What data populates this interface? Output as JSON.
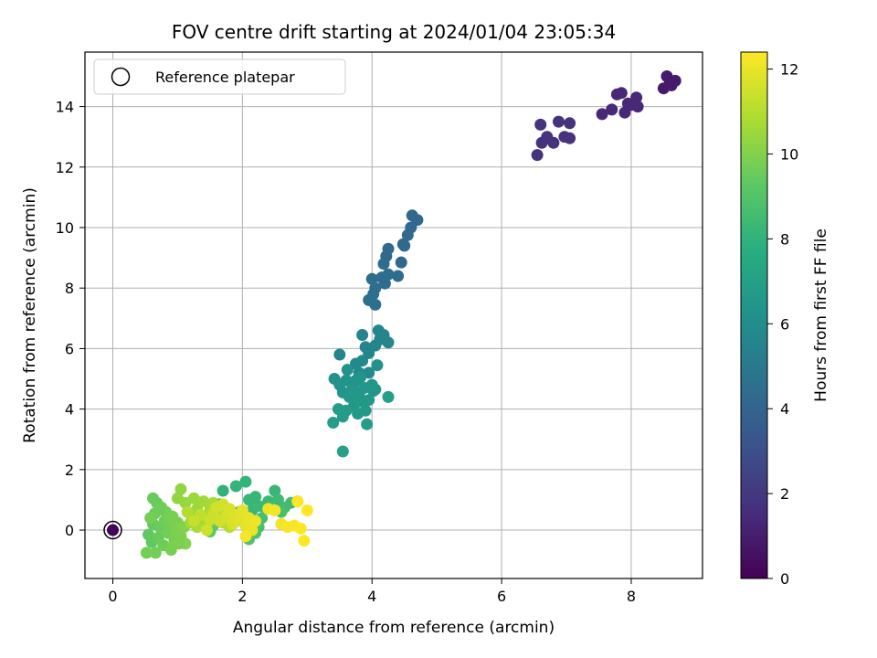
{
  "chart_data": {
    "type": "scatter",
    "title": "FOV centre drift starting at 2024/01/04 23:05:34",
    "xlabel": "Angular distance from reference (arcmin)",
    "ylabel": "Rotation from reference (arcmin)",
    "xlim": [
      -0.43,
      9.1
    ],
    "ylim": [
      -1.6,
      15.8
    ],
    "xticks": [
      0,
      2,
      4,
      6,
      8
    ],
    "yticks": [
      0,
      2,
      4,
      6,
      8,
      10,
      12,
      14
    ],
    "grid": true,
    "legend": {
      "placement": "top-left",
      "entries": [
        "Reference platepar"
      ]
    },
    "colorbar": {
      "label": "Hours from first FF file",
      "range": [
        0,
        12.4
      ],
      "ticks": [
        0,
        2,
        4,
        6,
        8,
        10,
        12
      ],
      "colormap": "viridis"
    },
    "reference_point": {
      "x": 0,
      "y": 0,
      "hours": 0.1
    },
    "points": [
      [
        6.55,
        12.4,
        1.8
      ],
      [
        6.62,
        12.8,
        1.8
      ],
      [
        6.7,
        13.0,
        1.8
      ],
      [
        6.8,
        12.8,
        1.8
      ],
      [
        6.6,
        13.4,
        1.8
      ],
      [
        6.88,
        13.5,
        1.8
      ],
      [
        6.97,
        13.0,
        1.8
      ],
      [
        7.05,
        13.45,
        1.8
      ],
      [
        7.05,
        12.95,
        1.8
      ],
      [
        7.55,
        13.75,
        1.4
      ],
      [
        7.7,
        13.9,
        1.4
      ],
      [
        7.78,
        14.4,
        1.4
      ],
      [
        7.85,
        14.45,
        1.4
      ],
      [
        7.9,
        13.8,
        1.4
      ],
      [
        8.0,
        14.05,
        1.4
      ],
      [
        8.08,
        14.3,
        1.4
      ],
      [
        7.95,
        14.1,
        1.4
      ],
      [
        8.1,
        14.0,
        1.4
      ],
      [
        8.5,
        14.6,
        0.9
      ],
      [
        8.55,
        15.0,
        0.9
      ],
      [
        8.6,
        14.8,
        0.9
      ],
      [
        8.68,
        14.85,
        0.9
      ],
      [
        8.62,
        14.7,
        0.9
      ],
      [
        4.45,
        8.85,
        4.2
      ],
      [
        4.5,
        9.4,
        4.2
      ],
      [
        4.55,
        9.75,
        4.2
      ],
      [
        4.6,
        10.0,
        4.2
      ],
      [
        4.62,
        10.4,
        4.2
      ],
      [
        4.7,
        10.25,
        4.2
      ],
      [
        4.25,
        9.3,
        4.2
      ],
      [
        4.22,
        9.05,
        4.2
      ],
      [
        4.4,
        8.4,
        4.4
      ],
      [
        4.25,
        8.45,
        4.4
      ],
      [
        4.18,
        8.8,
        4.4
      ],
      [
        4.15,
        8.35,
        4.4
      ],
      [
        4.2,
        8.15,
        4.4
      ],
      [
        4.0,
        8.3,
        4.4
      ],
      [
        4.05,
        8.0,
        4.5
      ],
      [
        4.02,
        7.8,
        4.5
      ],
      [
        3.95,
        7.6,
        4.5
      ],
      [
        4.05,
        7.45,
        4.5
      ],
      [
        4.48,
        9.45,
        4.2
      ],
      [
        3.5,
        5.8,
        5.6
      ],
      [
        3.85,
        6.45,
        5.6
      ],
      [
        3.9,
        6.05,
        5.6
      ],
      [
        3.95,
        5.85,
        5.6
      ],
      [
        4.05,
        6.1,
        5.6
      ],
      [
        4.1,
        6.6,
        5.6
      ],
      [
        4.12,
        6.3,
        5.6
      ],
      [
        4.18,
        6.45,
        5.6
      ],
      [
        4.25,
        6.2,
        5.6
      ],
      [
        3.75,
        5.5,
        5.8
      ],
      [
        3.8,
        5.2,
        5.8
      ],
      [
        3.85,
        5.6,
        5.8
      ],
      [
        3.95,
        5.2,
        5.8
      ],
      [
        3.42,
        5.0,
        6.3
      ],
      [
        3.5,
        4.8,
        6.3
      ],
      [
        3.55,
        4.55,
        6.4
      ],
      [
        3.6,
        4.95,
        6.4
      ],
      [
        3.62,
        5.3,
        6.3
      ],
      [
        3.65,
        4.4,
        6.5
      ],
      [
        3.7,
        4.7,
        6.5
      ],
      [
        3.72,
        4.1,
        6.6
      ],
      [
        3.75,
        4.95,
        6.4
      ],
      [
        3.78,
        3.85,
        6.7
      ],
      [
        3.8,
        4.5,
        6.5
      ],
      [
        3.82,
        5.05,
        6.4
      ],
      [
        3.85,
        4.25,
        6.6
      ],
      [
        3.88,
        4.7,
        6.5
      ],
      [
        3.9,
        3.95,
        6.7
      ],
      [
        3.92,
        3.5,
        6.8
      ],
      [
        3.95,
        4.3,
        6.6
      ],
      [
        4.0,
        4.8,
        6.5
      ],
      [
        4.02,
        4.6,
        6.5
      ],
      [
        4.05,
        4.65,
        6.5
      ],
      [
        4.08,
        5.45,
        6.3
      ],
      [
        3.6,
        3.95,
        6.8
      ],
      [
        3.55,
        3.75,
        6.8
      ],
      [
        3.48,
        4.0,
        6.8
      ],
      [
        3.4,
        3.55,
        6.9
      ],
      [
        3.55,
        2.6,
        7.1
      ],
      [
        4.25,
        4.4,
        7.0
      ],
      [
        3.68,
        4.6,
        6.5
      ],
      [
        3.75,
        4.3,
        6.6
      ],
      [
        1.65,
        0.85,
        8.0
      ],
      [
        1.7,
        1.3,
        8.0
      ],
      [
        1.9,
        1.45,
        8.1
      ],
      [
        2.05,
        1.6,
        8.1
      ],
      [
        2.1,
        1.0,
        8.2
      ],
      [
        2.15,
        0.65,
        8.2
      ],
      [
        2.25,
        0.8,
        8.3
      ],
      [
        2.2,
        1.1,
        8.2
      ],
      [
        2.35,
        0.75,
        8.3
      ],
      [
        2.4,
        0.95,
        8.3
      ],
      [
        2.5,
        1.3,
        8.2
      ],
      [
        2.55,
        1.0,
        8.4
      ],
      [
        2.65,
        0.75,
        8.5
      ],
      [
        2.75,
        0.9,
        8.5
      ],
      [
        2.85,
        0.95,
        8.5
      ],
      [
        2.3,
        0.4,
        8.6
      ],
      [
        2.0,
        0.3,
        8.7
      ],
      [
        2.25,
        0.1,
        8.7
      ],
      [
        2.2,
        -0.1,
        8.8
      ],
      [
        2.1,
        -0.3,
        8.9
      ],
      [
        1.85,
        0.2,
        8.9
      ],
      [
        1.95,
        0.6,
        8.6
      ],
      [
        2.6,
        0.6,
        8.7
      ],
      [
        0.55,
        -0.15,
        9.3
      ],
      [
        0.6,
        -0.4,
        9.3
      ],
      [
        0.62,
        0.2,
        9.4
      ],
      [
        0.65,
        0.55,
        9.4
      ],
      [
        0.68,
        0.9,
        9.5
      ],
      [
        0.7,
        -0.25,
        9.5
      ],
      [
        0.72,
        0.1,
        9.5
      ],
      [
        0.75,
        0.75,
        9.6
      ],
      [
        0.78,
        -0.5,
        9.6
      ],
      [
        0.8,
        0.3,
        9.6
      ],
      [
        0.82,
        0.6,
        9.7
      ],
      [
        0.85,
        -0.1,
        9.7
      ],
      [
        0.88,
        0.15,
        9.7
      ],
      [
        0.9,
        -0.65,
        9.8
      ],
      [
        0.92,
        0.45,
        9.8
      ],
      [
        0.95,
        -0.35,
        9.8
      ],
      [
        0.98,
        0.0,
        9.9
      ],
      [
        1.0,
        0.25,
        9.9
      ],
      [
        1.05,
        -0.2,
        9.9
      ],
      [
        1.1,
        0.1,
        10.0
      ],
      [
        1.12,
        -0.45,
        10.0
      ],
      [
        0.62,
        1.05,
        9.5
      ],
      [
        0.7,
        0.65,
        9.6
      ],
      [
        0.52,
        -0.75,
        9.7
      ],
      [
        0.66,
        -0.75,
        9.7
      ],
      [
        0.58,
        0.4,
        9.7
      ],
      [
        0.88,
        0.35,
        9.8
      ],
      [
        1.02,
        -0.45,
        9.9
      ],
      [
        1.5,
        -0.05,
        9.3
      ],
      [
        1.55,
        0.15,
        9.2
      ],
      [
        1.0,
        1.05,
        10.3
      ],
      [
        1.05,
        1.35,
        10.3
      ],
      [
        1.12,
        0.9,
        10.4
      ],
      [
        1.2,
        0.55,
        10.4
      ],
      [
        1.25,
        1.05,
        10.5
      ],
      [
        1.3,
        0.7,
        10.5
      ],
      [
        1.35,
        0.4,
        10.6
      ],
      [
        1.4,
        0.95,
        10.6
      ],
      [
        1.45,
        0.2,
        10.7
      ],
      [
        1.5,
        0.65,
        10.7
      ],
      [
        1.55,
        0.9,
        10.8
      ],
      [
        1.6,
        0.5,
        10.8
      ],
      [
        1.65,
        0.75,
        10.9
      ],
      [
        1.7,
        0.25,
        10.9
      ],
      [
        1.75,
        0.6,
        11.0
      ],
      [
        1.8,
        0.1,
        11.0
      ],
      [
        1.85,
        0.45,
        11.1
      ],
      [
        1.3,
        0.1,
        10.8
      ],
      [
        1.2,
        0.25,
        10.6
      ],
      [
        1.5,
        0.35,
        11.4
      ],
      [
        1.55,
        0.55,
        11.4
      ],
      [
        1.6,
        0.75,
        11.5
      ],
      [
        1.65,
        0.3,
        11.5
      ],
      [
        1.7,
        0.85,
        11.6
      ],
      [
        1.75,
        0.45,
        11.6
      ],
      [
        1.8,
        0.7,
        11.7
      ],
      [
        1.85,
        0.2,
        11.7
      ],
      [
        1.9,
        0.5,
        11.8
      ],
      [
        1.95,
        0.35,
        11.8
      ],
      [
        2.0,
        0.65,
        11.9
      ],
      [
        2.05,
        0.15,
        11.9
      ],
      [
        2.1,
        0.4,
        12.0
      ],
      [
        2.15,
        0.0,
        12.0
      ],
      [
        2.2,
        0.3,
        12.1
      ],
      [
        2.4,
        0.7,
        12.1
      ],
      [
        2.5,
        0.65,
        12.2
      ],
      [
        2.6,
        0.2,
        12.2
      ],
      [
        2.7,
        0.1,
        12.3
      ],
      [
        2.8,
        0.15,
        12.3
      ],
      [
        2.9,
        0.05,
        12.4
      ],
      [
        2.95,
        -0.35,
        12.4
      ],
      [
        3.0,
        0.65,
        12.4
      ],
      [
        2.85,
        0.95,
        12.4
      ],
      [
        2.05,
        -0.2,
        12.3
      ],
      [
        1.45,
        0.0,
        11.5
      ],
      [
        1.35,
        0.5,
        11.2
      ],
      [
        1.25,
        0.3,
        11.3
      ],
      [
        1.15,
        0.6,
        11.0
      ]
    ]
  }
}
